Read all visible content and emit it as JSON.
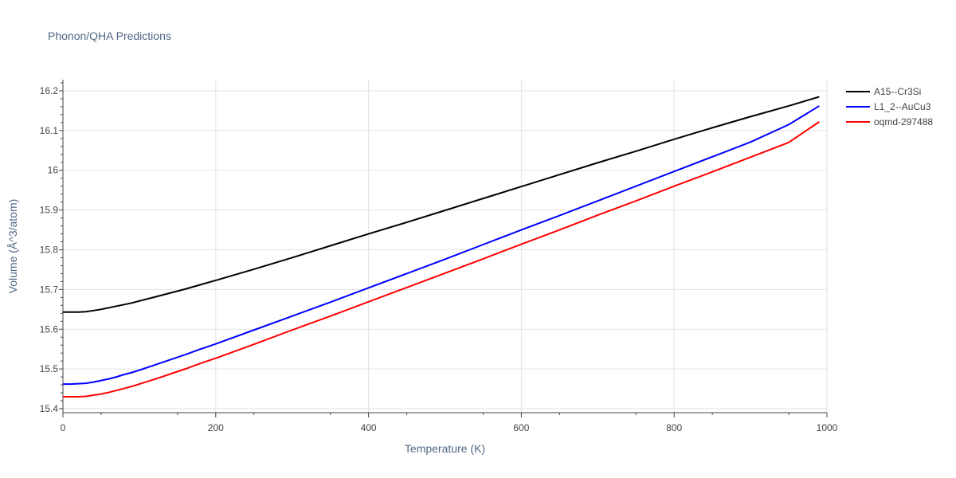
{
  "chart_data": {
    "type": "line",
    "title": "Phonon/QHA Predictions",
    "xlabel": "Temperature (K)",
    "ylabel": "Volume (Å^3/atom)",
    "xlim": [
      0,
      1000
    ],
    "ylim": [
      15.39,
      16.228
    ],
    "x_ticks": [
      0,
      200,
      400,
      600,
      800,
      1000
    ],
    "y_ticks": [
      15.4,
      15.5,
      15.6,
      15.7,
      15.8,
      15.9,
      16.0,
      16.1,
      16.2
    ],
    "x_tick_labels": [
      "0",
      "200",
      "400",
      "600",
      "800",
      "1000"
    ],
    "y_tick_labels": [
      "15.4",
      "15.5",
      "15.6",
      "15.7",
      "15.8",
      "15.9",
      "16",
      "16.1",
      "16.2"
    ],
    "grid": true,
    "legend_position": "top-right",
    "series": [
      {
        "name": "A15--Cr3Si",
        "color": "#000000",
        "x": [
          0,
          10,
          20,
          30,
          40,
          50,
          60,
          70,
          80,
          90,
          100,
          120,
          140,
          160,
          180,
          200,
          250,
          300,
          350,
          400,
          450,
          500,
          550,
          600,
          650,
          700,
          750,
          800,
          850,
          900,
          950,
          990
        ],
        "y": [
          15.643,
          15.643,
          15.643,
          15.644,
          15.647,
          15.65,
          15.654,
          15.658,
          15.662,
          15.666,
          15.671,
          15.681,
          15.691,
          15.701,
          15.712,
          15.723,
          15.751,
          15.78,
          15.81,
          15.84,
          15.869,
          15.899,
          15.929,
          15.959,
          15.989,
          16.019,
          16.048,
          16.078,
          16.107,
          16.135,
          16.162,
          16.185
        ]
      },
      {
        "name": "L1_2--AuCu3",
        "color": "#0000ff",
        "x": [
          0,
          10,
          20,
          30,
          40,
          50,
          60,
          70,
          80,
          90,
          100,
          120,
          140,
          160,
          180,
          200,
          250,
          300,
          350,
          400,
          450,
          500,
          550,
          600,
          650,
          700,
          750,
          800,
          850,
          900,
          950,
          990
        ],
        "y": [
          15.462,
          15.462,
          15.463,
          15.464,
          15.467,
          15.471,
          15.475,
          15.48,
          15.486,
          15.491,
          15.497,
          15.51,
          15.523,
          15.536,
          15.55,
          15.563,
          15.598,
          15.633,
          15.668,
          15.704,
          15.74,
          15.776,
          15.813,
          15.85,
          15.886,
          15.923,
          15.96,
          15.997,
          16.034,
          16.071,
          16.115,
          16.162
        ]
      },
      {
        "name": "oqmd-297488",
        "color": "#ff0000",
        "x": [
          0,
          10,
          20,
          30,
          40,
          50,
          60,
          70,
          80,
          90,
          100,
          120,
          140,
          160,
          180,
          200,
          250,
          300,
          350,
          400,
          450,
          500,
          550,
          600,
          650,
          700,
          750,
          800,
          850,
          900,
          950,
          990
        ],
        "y": [
          15.43,
          15.43,
          15.43,
          15.431,
          15.434,
          15.437,
          15.441,
          15.446,
          15.451,
          15.456,
          15.462,
          15.474,
          15.487,
          15.5,
          15.514,
          15.527,
          15.562,
          15.598,
          15.633,
          15.669,
          15.705,
          15.741,
          15.777,
          15.814,
          15.85,
          15.887,
          15.923,
          15.96,
          15.996,
          16.033,
          16.07,
          16.122
        ]
      }
    ]
  }
}
